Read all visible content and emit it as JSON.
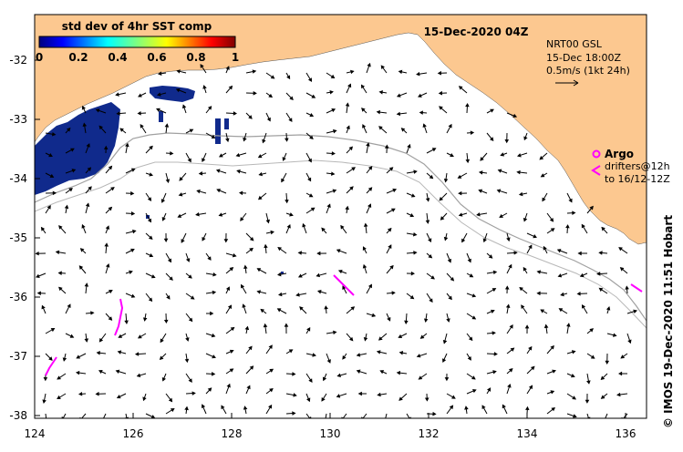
{
  "map": {
    "title": "15-Dec-2020 04Z",
    "colorbar": {
      "title": "std dev of 4hr SST comp",
      "ticks": [
        "0",
        "0.2",
        "0.4",
        "0.6",
        "0.8",
        "1"
      ]
    },
    "velocity_info": {
      "line1": "NRT00 GSL",
      "line2": "15-Dec 18:00Z",
      "line3": "0.5m/s (1kt 24h)"
    },
    "legend": {
      "argo_label": "Argo",
      "drifters_line1": "drifters@12h",
      "drifters_line2": "to 16/12-12Z",
      "argo_color": "#ff00ff",
      "drifter_color": "#ff00ff"
    },
    "credit": "© IMOS 19-Dec-2020 11:51 Hobart",
    "colors": {
      "land": "#fcc890",
      "sst_patch": "#102a8c",
      "isobath": "#a0a0a0",
      "drifter": "#ff00ff"
    },
    "lat_ticks": [
      "-32",
      "-33",
      "-34",
      "-35",
      "-36",
      "-37",
      "-38"
    ],
    "lon_ticks": [
      "124",
      "126",
      "128",
      "130",
      "132",
      "134",
      "136"
    ]
  }
}
